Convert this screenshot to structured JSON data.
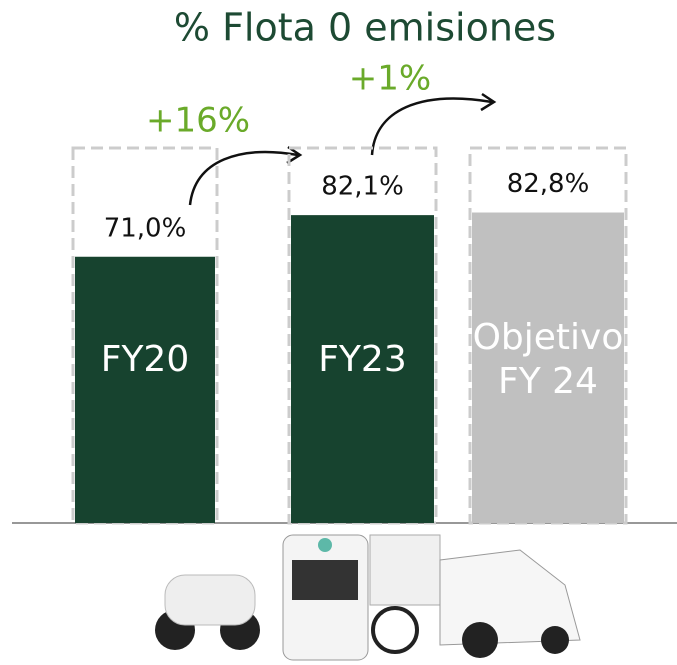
{
  "chart_data": {
    "type": "bar",
    "title": "% Flota 0 emisiones",
    "categories": [
      "FY20",
      "FY23",
      "Objetivo FY 24"
    ],
    "values": [
      71.0,
      82.1,
      82.8
    ],
    "value_labels": [
      "71,0%",
      "82,1%",
      "82,8%"
    ],
    "colors": [
      "#17432f",
      "#17432f",
      "#c0c0c0"
    ],
    "ylim": [
      0,
      100
    ],
    "annotations": [
      "+16%",
      "+1%"
    ]
  }
}
